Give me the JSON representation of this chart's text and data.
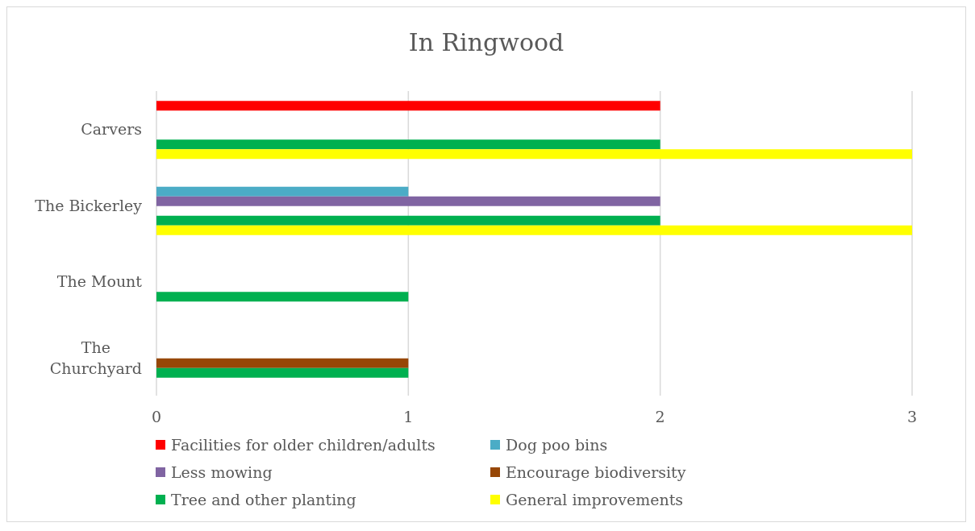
{
  "chart_data": {
    "type": "bar",
    "orientation": "horizontal",
    "title": "In Ringwood",
    "categories": [
      "Carvers",
      "The Bickerley",
      "The Mount",
      "The Churchyard"
    ],
    "series": [
      {
        "name": "Facilities for older children/adults",
        "color": "#ff0000",
        "values": [
          2,
          null,
          null,
          null
        ]
      },
      {
        "name": "Dog poo bins",
        "color": "#4bacc6",
        "values": [
          null,
          1,
          null,
          null
        ]
      },
      {
        "name": "Less mowing",
        "color": "#8064a2",
        "values": [
          null,
          2,
          null,
          null
        ]
      },
      {
        "name": "Encourage biodiversity",
        "color": "#974706",
        "values": [
          null,
          null,
          null,
          1
        ]
      },
      {
        "name": "Tree and other planting",
        "color": "#00b050",
        "values": [
          2,
          2,
          1,
          1
        ]
      },
      {
        "name": "General improvements",
        "color": "#ffff00",
        "values": [
          3,
          3,
          null,
          null
        ]
      }
    ],
    "xlim": [
      0,
      3
    ],
    "xticks": [
      0,
      1,
      2,
      3
    ],
    "grid": "x",
    "legend": "bottom"
  }
}
